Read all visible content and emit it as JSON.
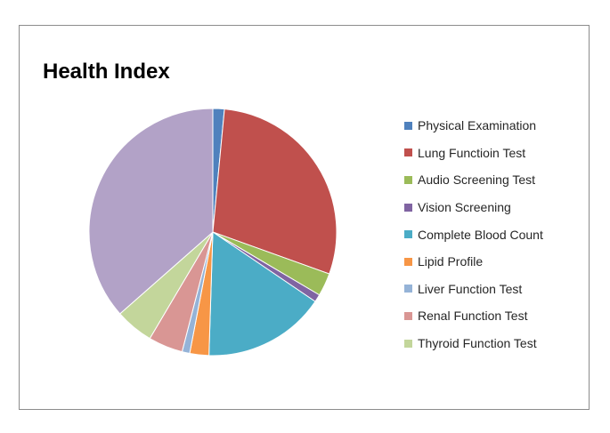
{
  "chart_data": {
    "type": "pie",
    "title": "Health Index",
    "legend_position": "right",
    "start_angle": "top, clockwise",
    "slices": [
      {
        "label": "Physical Examination",
        "value": 1.5,
        "color": "#4f81bd"
      },
      {
        "label": "Lung Functioin Test",
        "value": 29,
        "color": "#c0504d"
      },
      {
        "label": "Audio Screening Test",
        "value": 3,
        "color": "#9bbb59"
      },
      {
        "label": "Vision Screening",
        "value": 1,
        "color": "#8064a2"
      },
      {
        "label": "Complete Blood Count",
        "value": 16,
        "color": "#4bacc6"
      },
      {
        "label": "Lipid Profile",
        "value": 2.5,
        "color": "#f79646"
      },
      {
        "label": "Liver Function Test",
        "value": 1,
        "color": "#95b3d7"
      },
      {
        "label": "Renal Function Test",
        "value": 4.5,
        "color": "#d99694"
      },
      {
        "label": "Thyroid Function Test",
        "value": 5,
        "color": "#c3d69b"
      },
      {
        "label": "",
        "value": 36.5,
        "color": "#b2a2c7"
      }
    ]
  }
}
